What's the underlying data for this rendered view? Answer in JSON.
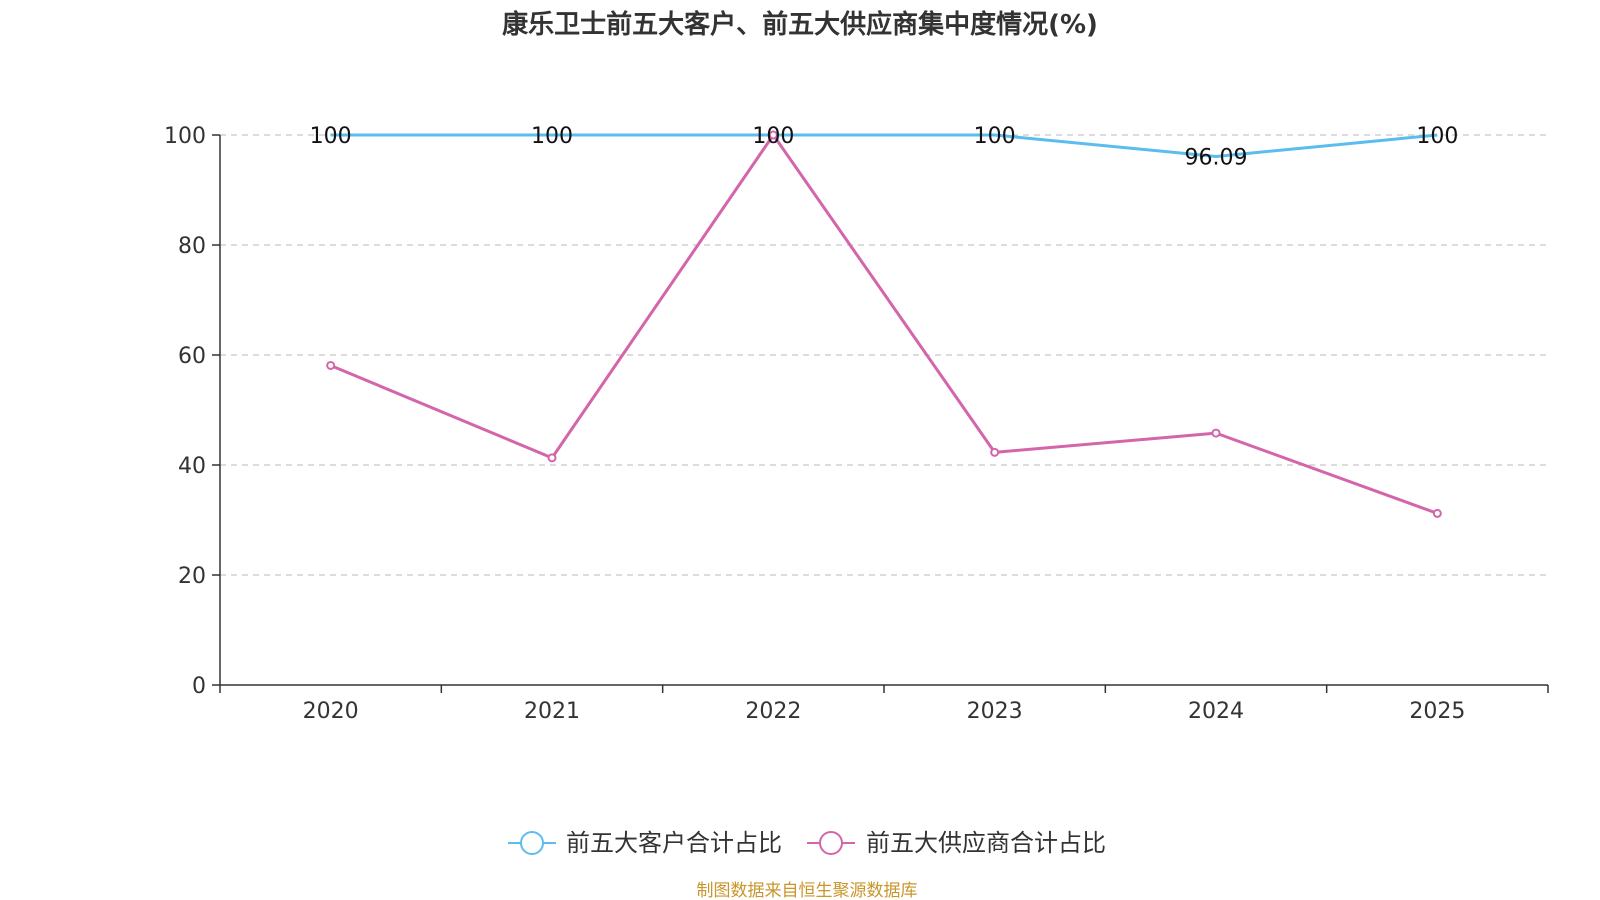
{
  "chart_data": {
    "type": "line",
    "title": "康乐卫士前五大客户、前五大供应商集中度情况(%)",
    "categories": [
      "2020",
      "2021",
      "2022",
      "2023",
      "2024",
      "2025"
    ],
    "ylim": [
      0,
      100
    ],
    "yticks": [
      "0",
      "20",
      "40",
      "60",
      "80",
      "100"
    ],
    "grid": true,
    "legend_position": "bottom",
    "series": [
      {
        "name": "前五大客户合计占比",
        "color": "#5bbcee",
        "values": [
          100,
          100,
          100,
          100,
          96.09,
          100
        ],
        "labels": [
          "100",
          "100",
          "100",
          "100",
          "96.09",
          "100"
        ]
      },
      {
        "name": "前五大供应商合计占比",
        "color": "#d465aa",
        "values": [
          58.1,
          41.3,
          100,
          42.3,
          45.8,
          31.2
        ]
      }
    ]
  },
  "source": "制图数据来自恒生聚源数据库"
}
